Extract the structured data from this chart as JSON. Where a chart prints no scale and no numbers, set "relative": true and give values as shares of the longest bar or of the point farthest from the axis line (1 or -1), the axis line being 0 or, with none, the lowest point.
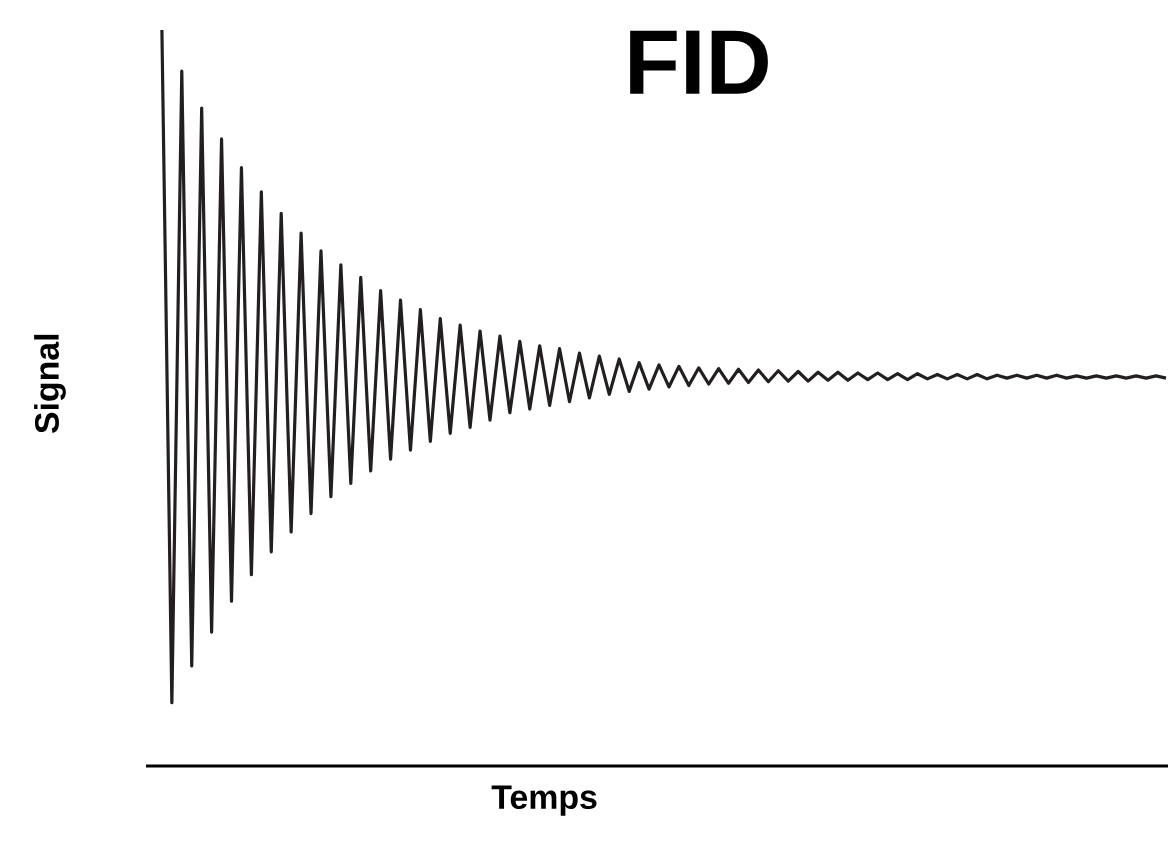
{
  "chart_data": {
    "type": "line",
    "title": "FID",
    "xlabel": "Temps",
    "ylabel": "Signal",
    "relative": true,
    "categories": [
      null,
      null,
      null,
      null,
      null,
      null,
      null,
      null,
      null,
      null,
      null,
      null,
      null,
      null,
      null,
      null,
      null,
      null,
      null,
      null,
      null,
      null,
      null,
      null,
      null,
      null,
      null,
      null,
      null,
      null,
      null,
      null,
      null,
      null,
      null,
      null,
      null,
      null,
      null,
      null,
      null,
      null,
      null,
      null,
      null,
      null,
      null,
      null,
      null,
      null,
      null,
      null,
      null,
      null,
      null,
      null,
      null,
      null,
      null,
      null,
      null,
      null,
      null,
      null,
      null,
      null,
      null,
      null,
      null,
      null,
      null,
      null,
      null,
      null,
      null,
      null,
      null,
      null,
      null,
      null,
      null,
      null,
      null,
      null,
      null,
      null,
      null,
      null,
      null,
      null,
      null,
      null,
      null,
      null,
      null,
      null,
      null,
      null,
      null,
      null,
      null,
      null
    ],
    "series": [
      {
        "color": "#231f20",
        "values": [
          1.0,
          0.086,
          0.944,
          0.136,
          0.894,
          0.182,
          0.852,
          0.224,
          0.813,
          0.26,
          0.78,
          0.291,
          0.751,
          0.318,
          0.724,
          0.343,
          0.7,
          0.366,
          0.681,
          0.384,
          0.664,
          0.401,
          0.646,
          0.417,
          0.633,
          0.429,
          0.62,
          0.441,
          0.608,
          0.452,
          0.599,
          0.46,
          0.591,
          0.47,
          0.584,
          0.48,
          0.577,
          0.485,
          0.571,
          0.49,
          0.567,
          0.495,
          0.561,
          0.5,
          0.557,
          0.505,
          0.553,
          0.509,
          0.548,
          0.512,
          0.545,
          0.515,
          0.543,
          0.517,
          0.541,
          0.519,
          0.54,
          0.52,
          0.539,
          0.521,
          0.538,
          0.522,
          0.537,
          0.523,
          0.536,
          0.523,
          0.535,
          0.524,
          0.535,
          0.524,
          0.534,
          0.525,
          0.534,
          0.525,
          0.533,
          0.525,
          0.533,
          0.526,
          0.532,
          0.526,
          0.532,
          0.526,
          0.532,
          0.526,
          0.531,
          0.527,
          0.531,
          0.527,
          0.531,
          0.527,
          0.531,
          0.527,
          0.53,
          0.527,
          0.53,
          0.527,
          0.53,
          0.527,
          0.53,
          0.527,
          0.53,
          0.527
        ]
      }
    ]
  }
}
